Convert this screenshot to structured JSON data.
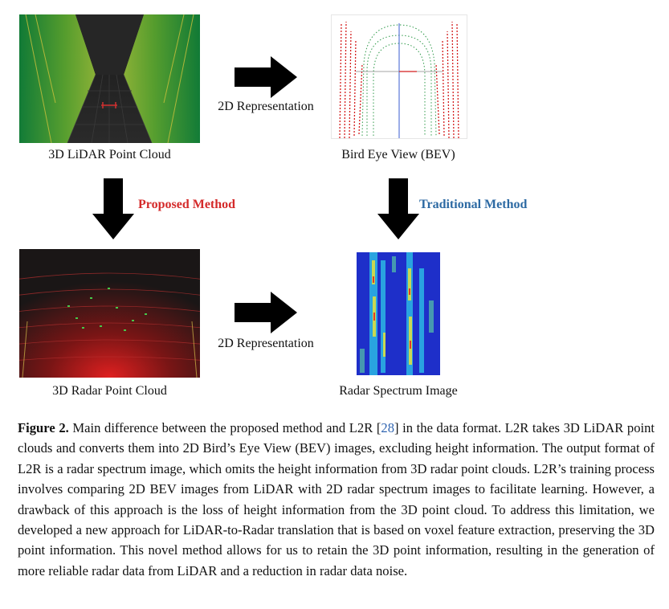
{
  "figure": {
    "panels": {
      "lidar_3d": {
        "label": "3D LiDAR Point Cloud"
      },
      "bev": {
        "label": "Bird Eye View (BEV)"
      },
      "radar_3d": {
        "label": "3D Radar Point Cloud"
      },
      "spectrum": {
        "label": "Radar Spectrum Image"
      }
    },
    "arrows": {
      "top_label": "2D Representation",
      "bottom_label": "2D Representation",
      "proposed_label": "Proposed Method",
      "traditional_label": "Traditional Method"
    },
    "colors": {
      "proposed": "#d42a2a",
      "traditional": "#2d6aa3",
      "reference_link": "#2f64b0"
    }
  },
  "caption": {
    "prefix": "Figure 2.",
    "text_before_ref": " Main difference between the proposed method and L2R [",
    "ref": "28",
    "text_after_ref": "] in the data format. L2R takes 3D LiDAR point clouds and converts them into 2D Bird’s Eye View (BEV) images, excluding height information. The output format of L2R is a radar spectrum image, which omits the height information from 3D radar point clouds. L2R’s training process involves comparing 2D BEV images from LiDAR with 2D radar spectrum images to facilitate learning. However, a drawback of this approach is the loss of height information from the 3D point cloud. To address this limitation, we developed a new approach for LiDAR-to-Radar translation that is based on voxel feature extraction, preserving the 3D point information. This novel method allows for us to retain the 3D point information, resulting in the generation of more reliable radar data from LiDAR and a reduction in radar data noise."
  }
}
